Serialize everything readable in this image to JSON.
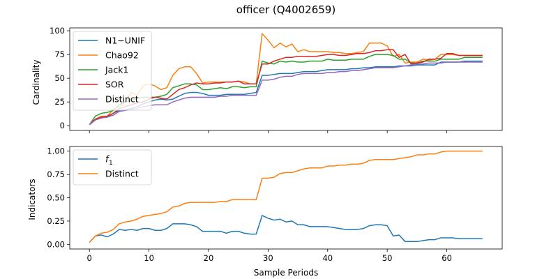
{
  "title": "officer (Q4002659)",
  "chart_data": [
    {
      "type": "line",
      "ylabel": "Cardinality",
      "xlabel": "",
      "xlim": [
        -3.3,
        69.3
      ],
      "ylim": [
        -5,
        103
      ],
      "xticks": [
        0,
        10,
        20,
        30,
        40,
        50,
        60
      ],
      "yticks": [
        0,
        25,
        50,
        75,
        100
      ],
      "ytick_labels": [
        "0",
        "25",
        "50",
        "75",
        "100"
      ],
      "legend_position": "upper-left",
      "series": [
        {
          "name": "N1−UNIF",
          "color": "#1f77b4",
          "values": [
            1,
            6,
            9,
            9,
            13,
            16,
            17,
            18,
            20,
            23,
            25,
            27,
            28,
            27,
            28,
            31,
            34,
            35,
            35,
            34,
            32,
            32,
            32,
            33,
            33,
            33,
            33,
            34,
            35,
            53,
            53,
            54,
            55,
            55,
            55,
            56,
            57,
            57,
            57,
            58,
            59,
            59,
            59,
            59,
            60,
            60,
            61,
            61,
            62,
            62,
            62,
            62,
            63,
            63,
            63,
            64,
            64,
            64,
            64,
            67,
            67,
            67,
            67,
            68,
            68,
            68,
            68
          ]
        },
        {
          "name": "Chao92",
          "color": "#ff7f0e",
          "values": [
            1,
            7,
            10,
            10,
            17,
            20,
            25,
            35,
            32,
            42,
            44,
            42,
            38,
            40,
            53,
            60,
            62,
            62,
            55,
            45,
            46,
            46,
            46,
            46,
            46,
            47,
            46,
            44,
            44,
            97,
            90,
            82,
            87,
            83,
            86,
            78,
            80,
            78,
            78,
            78,
            78,
            77,
            77,
            76,
            76,
            77,
            78,
            87,
            87,
            87,
            84,
            73,
            75,
            66,
            67,
            67,
            70,
            69,
            70,
            75,
            75,
            75,
            74,
            74,
            74,
            74,
            74
          ]
        },
        {
          "name": "Jack1",
          "color": "#2ca02c",
          "values": [
            1,
            10,
            13,
            14,
            16,
            22,
            25,
            27,
            29,
            30,
            30,
            30,
            31,
            33,
            40,
            42,
            44,
            44,
            43,
            38,
            38,
            39,
            40,
            39,
            41,
            41,
            40,
            41,
            41,
            68,
            66,
            65,
            68,
            67,
            68,
            67,
            67,
            68,
            68,
            68,
            70,
            69,
            69,
            69,
            70,
            70,
            70,
            73,
            75,
            75,
            75,
            74,
            70,
            70,
            66,
            66,
            68,
            68,
            68,
            70,
            70,
            70,
            70,
            72,
            72,
            72,
            72
          ]
        },
        {
          "name": "SOR",
          "color": "#d62728",
          "values": [
            1,
            7,
            9,
            10,
            13,
            18,
            20,
            22,
            24,
            25,
            28,
            30,
            29,
            28,
            33,
            38,
            40,
            43,
            45,
            44,
            44,
            45,
            45,
            46,
            46,
            47,
            44,
            44,
            44,
            65,
            65,
            68,
            70,
            72,
            72,
            73,
            73,
            73,
            73,
            74,
            75,
            75,
            74,
            74,
            75,
            76,
            76,
            77,
            79,
            79,
            80,
            80,
            72,
            75,
            65,
            66,
            67,
            70,
            70,
            71,
            76,
            76,
            74,
            74,
            74,
            74,
            74
          ]
        },
        {
          "name": "Distinct",
          "color": "#9467bd",
          "values": [
            1,
            6,
            8,
            9,
            11,
            15,
            16,
            17,
            18,
            20,
            21,
            22,
            22,
            22,
            25,
            27,
            29,
            30,
            30,
            30,
            30,
            30,
            31,
            31,
            32,
            32,
            32,
            32,
            32,
            48,
            48,
            49,
            51,
            52,
            52,
            54,
            55,
            55,
            55,
            55,
            56,
            56,
            57,
            57,
            58,
            58,
            59,
            60,
            61,
            61,
            61,
            61,
            62,
            63,
            64,
            65,
            65,
            66,
            66,
            66,
            67,
            67,
            67,
            67,
            67,
            67,
            67
          ]
        }
      ]
    },
    {
      "type": "line",
      "ylabel": "Indicators",
      "xlabel": "Sample Periods",
      "xlim": [
        -3.3,
        69.3
      ],
      "ylim": [
        -0.05,
        1.05
      ],
      "xticks": [
        0,
        10,
        20,
        30,
        40,
        50,
        60
      ],
      "xtick_labels": [
        "0",
        "10",
        "20",
        "30",
        "40",
        "50",
        "60"
      ],
      "yticks": [
        0,
        0.25,
        0.5,
        0.75,
        1.0
      ],
      "ytick_labels": [
        "0.00",
        "0.25",
        "0.50",
        "0.75",
        "1.00"
      ],
      "legend_position": "upper-left",
      "series": [
        {
          "name": "f1",
          "name_base": "f",
          "name_sub": "1",
          "color": "#1f77b4",
          "values": [
            0.02,
            0.09,
            0.1,
            0.08,
            0.11,
            0.16,
            0.15,
            0.16,
            0.15,
            0.17,
            0.17,
            0.15,
            0.15,
            0.17,
            0.22,
            0.22,
            0.22,
            0.21,
            0.19,
            0.14,
            0.14,
            0.14,
            0.14,
            0.12,
            0.14,
            0.14,
            0.12,
            0.11,
            0.11,
            0.31,
            0.28,
            0.26,
            0.27,
            0.24,
            0.25,
            0.21,
            0.21,
            0.19,
            0.19,
            0.19,
            0.19,
            0.18,
            0.17,
            0.16,
            0.16,
            0.16,
            0.17,
            0.2,
            0.21,
            0.21,
            0.2,
            0.09,
            0.1,
            0.03,
            0.03,
            0.03,
            0.04,
            0.05,
            0.05,
            0.07,
            0.07,
            0.07,
            0.06,
            0.06,
            0.06,
            0.06,
            0.06
          ]
        },
        {
          "name": "Distinct",
          "color": "#ff7f0e",
          "values": [
            0.02,
            0.09,
            0.12,
            0.13,
            0.16,
            0.22,
            0.24,
            0.25,
            0.27,
            0.3,
            0.31,
            0.32,
            0.33,
            0.35,
            0.4,
            0.41,
            0.44,
            0.45,
            0.45,
            0.45,
            0.45,
            0.45,
            0.46,
            0.46,
            0.48,
            0.48,
            0.48,
            0.48,
            0.48,
            0.71,
            0.71,
            0.72,
            0.76,
            0.77,
            0.77,
            0.79,
            0.81,
            0.82,
            0.82,
            0.82,
            0.84,
            0.84,
            0.85,
            0.85,
            0.86,
            0.86,
            0.87,
            0.9,
            0.91,
            0.91,
            0.91,
            0.91,
            0.92,
            0.93,
            0.94,
            0.96,
            0.96,
            0.97,
            0.97,
            0.99,
            1.0,
            1.0,
            1.0,
            1.0,
            1.0,
            1.0,
            1.0
          ]
        }
      ]
    }
  ]
}
